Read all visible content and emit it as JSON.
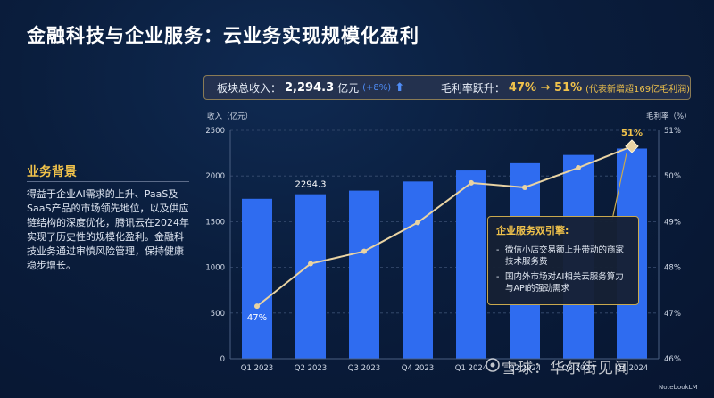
{
  "title": "金融科技与企业服务：云业务实现规模化盈利",
  "kpi": {
    "revenue_label": "板块总收入：",
    "revenue_value": "2,294.3",
    "revenue_unit": "亿元",
    "revenue_change": "(+8%)",
    "margin_label": "毛利率跃升：",
    "margin_value": "47% → 51%",
    "margin_note": "(代表新增超169亿毛利润)"
  },
  "background": {
    "title": "业务背景",
    "text": "得益于企业AI需求的上升、PaaS及SaaS产品的市场领先地位，以及供应链结构的深度优化，腾讯云在2024年实现了历史性的规模化盈利。金融科技业务通过审慎风险管理，保持健康稳步增长。"
  },
  "callout": {
    "title": "企业服务双引擎:",
    "items": [
      "微信小店交易额上升带动的商家技术服务费",
      "国内外市场对AI相关云服务算力与API的强劲需求"
    ]
  },
  "chart_data": {
    "type": "bar",
    "categories": [
      "Q1 2023",
      "Q2 2023",
      "Q3 2023",
      "Q4 2023",
      "Q1 2024",
      "Q2 2024",
      "Q3 2024",
      "Q4 2024"
    ],
    "series": [
      {
        "values": [
          1750,
          1800,
          1840,
          1940,
          2060,
          2140,
          2230,
          2300
        ],
        "axis": "left",
        "mark": "bar",
        "color": "#2f6cf0"
      },
      {
        "values": [
          47.15,
          48.08,
          48.35,
          48.98,
          49.85,
          49.75,
          50.18,
          50.65
        ],
        "axis": "right",
        "mark": "line",
        "color": "#e9d3a3"
      }
    ],
    "left_axis": {
      "title": "收入（亿元）",
      "ylim": [
        0,
        2500
      ],
      "ticks": [
        0,
        500,
        1000,
        1500,
        2000,
        2500
      ]
    },
    "right_axis": {
      "title": "毛利率（%）",
      "ylim": [
        46,
        51
      ],
      "ticks": [
        "46%",
        "47%",
        "48%",
        "49%",
        "50%",
        "51%"
      ]
    },
    "annotations": [
      {
        "category": "Q2 2023",
        "text": "2294.3"
      },
      {
        "category": "Q1 2023",
        "text": "47%"
      },
      {
        "category": "Q4 2024",
        "text": "51%"
      }
    ],
    "grid": true
  },
  "watermark": "雪球：华尔街见闻",
  "brand": "NotebookLM"
}
